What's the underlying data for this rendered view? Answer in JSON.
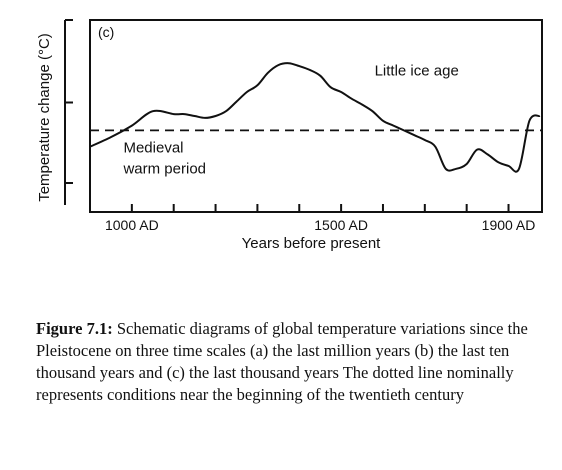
{
  "chart_data": {
    "type": "line",
    "panel_label": "(c)",
    "xlabel": "Years before present",
    "ylabel": "Temperature change (°C)",
    "xlim": [
      900,
      1980
    ],
    "ylim": [
      -1,
      1
    ],
    "x_ticks": [
      1000,
      1100,
      1200,
      1300,
      1400,
      1500,
      1600,
      1700,
      1800,
      1900
    ],
    "x_tick_labels": [
      {
        "x": 1000,
        "label": "1000 AD"
      },
      {
        "x": 1500,
        "label": "1500 AD"
      },
      {
        "x": 1900,
        "label": "1900 AD"
      }
    ],
    "y_ticks": [
      -1,
      0,
      1
    ],
    "reference_line": {
      "y": -0.15,
      "style": "dashed"
    },
    "series": [
      {
        "x": [
          900,
          950,
          1000,
          1050,
          1100,
          1125,
          1150,
          1175,
          1200,
          1225,
          1250,
          1275,
          1300,
          1325,
          1350,
          1375,
          1400,
          1425,
          1450,
          1475,
          1500,
          1525,
          1550,
          1575,
          1600,
          1625,
          1650,
          1675,
          1700,
          1725,
          1750,
          1775,
          1800,
          1825,
          1850,
          1875,
          1900,
          1925,
          1950,
          1975
        ],
        "y": [
          -0.32,
          -0.22,
          -0.1,
          0.05,
          0.02,
          0.02,
          0.0,
          -0.02,
          0.0,
          0.05,
          0.15,
          0.25,
          0.32,
          0.45,
          0.53,
          0.55,
          0.52,
          0.48,
          0.42,
          0.3,
          0.25,
          0.18,
          0.12,
          0.05,
          -0.05,
          -0.1,
          -0.15,
          -0.2,
          -0.25,
          -0.32,
          -0.55,
          -0.55,
          -0.5,
          -0.35,
          -0.4,
          -0.48,
          -0.52,
          -0.55,
          -0.05,
          0.0
        ]
      }
    ],
    "annotations": [
      {
        "text": "Little ice age",
        "x": 1580,
        "y": 0.42
      },
      {
        "text": "Medieval",
        "x": 980,
        "y": -0.38
      },
      {
        "text": "warm period",
        "x": 980,
        "y": -0.6
      }
    ]
  },
  "caption": {
    "label": "Figure 7.1:",
    "text": " Schematic diagrams of global temperature variations since the Pleistocene on three time scales  (a)  the last million years  (b) the last ten thousand years  and  (c)  the last thousand years  The dotted line nominally represents conditions near the beginning of the twentieth century"
  }
}
